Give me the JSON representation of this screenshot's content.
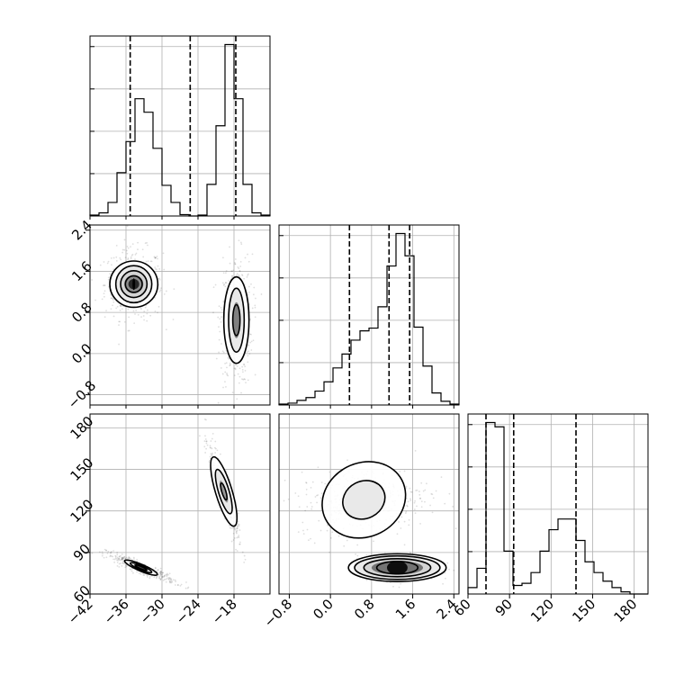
{
  "chart_data": {
    "type": "corner",
    "title": "",
    "parameters": [
      {
        "index": 0,
        "label": "",
        "range": [
          -42,
          -12
        ],
        "ticks": [
          -42,
          -36,
          -30,
          -24,
          -18
        ],
        "tick_labels": [
          "−42",
          "−36",
          "−30",
          "−24",
          "−18"
        ]
      },
      {
        "index": 1,
        "label": "",
        "range": [
          -1.0,
          2.5
        ],
        "ticks": [
          -0.8,
          0.0,
          0.8,
          1.6,
          2.4
        ],
        "tick_labels": [
          "−0.8",
          "0.0",
          "0.8",
          "1.6",
          "2.4"
        ]
      },
      {
        "index": 2,
        "label": "",
        "range": [
          60,
          190
        ],
        "ticks": [
          60,
          90,
          120,
          150,
          180
        ],
        "tick_labels": [
          "60",
          "90",
          "120",
          "150",
          "180"
        ]
      }
    ],
    "histograms": [
      {
        "param": 0,
        "bins": [
          -42,
          -40.5,
          -39,
          -37.5,
          -36,
          -34.5,
          -33,
          -31.5,
          -30,
          -28.5,
          -27,
          -25.5,
          -24,
          -22.5,
          -21,
          -19.5,
          -18,
          -16.5,
          -15,
          -13.5,
          -12
        ],
        "counts": [
          0.02,
          0.07,
          0.3,
          0.96,
          1.65,
          2.6,
          2.3,
          1.5,
          0.68,
          0.3,
          0.03,
          0.0,
          0.02,
          0.7,
          2.0,
          3.8,
          2.6,
          0.7,
          0.07,
          0.02
        ],
        "quantiles": [
          -35.3,
          -25.3,
          -17.7
        ]
      },
      {
        "param": 1,
        "bins": [
          -1.0,
          -0.825,
          -0.65,
          -0.475,
          -0.3,
          -0.125,
          0.05,
          0.225,
          0.4,
          0.575,
          0.75,
          0.925,
          1.1,
          1.275,
          1.45,
          1.625,
          1.8,
          1.975,
          2.15,
          2.325,
          2.5
        ],
        "counts": [
          0.01,
          0.02,
          0.05,
          0.08,
          0.15,
          0.25,
          0.4,
          0.55,
          0.7,
          0.8,
          0.83,
          1.06,
          1.5,
          1.85,
          1.61,
          0.84,
          0.42,
          0.13,
          0.04,
          0.01
        ],
        "quantiles": [
          0.37,
          1.14,
          1.54
        ]
      },
      {
        "param": 2,
        "bins": [
          60,
          66.5,
          73,
          79.5,
          86,
          92.5,
          99,
          105.5,
          112,
          118.5,
          125,
          131.5,
          138,
          144.5,
          151,
          157.5,
          164,
          170.5,
          177,
          183.5,
          190
        ],
        "counts": [
          0.03,
          0.12,
          0.8,
          0.78,
          0.2,
          0.04,
          0.05,
          0.1,
          0.2,
          0.3,
          0.35,
          0.35,
          0.25,
          0.15,
          0.1,
          0.06,
          0.03,
          0.01,
          0.0,
          0.0
        ],
        "quantiles": [
          73,
          93,
          138
        ]
      }
    ],
    "joint": [
      {
        "x_param": 0,
        "y_param": 1,
        "clusters": [
          {
            "center": [
              -34.7,
              1.35
            ],
            "spread": [
              2.1,
              0.3
            ],
            "rho": 0,
            "levels": [
              [
                0.1,
                0.1
              ],
              [
                1.4,
                0.16
              ],
              [
                2.2,
                0.26
              ],
              [
                3.0,
                0.36
              ],
              [
                4.0,
                0.45
              ]
            ],
            "core": [
              [
                1.6,
                0.18,
                0.45
              ],
              [
                0.9,
                0.1,
                0.85
              ]
            ]
          },
          {
            "center": [
              -17.6,
              0.65
            ],
            "spread": [
              1.15,
              0.55
            ],
            "rho": 0,
            "levels": [
              [
                0.6,
                0.3
              ],
              [
                1.3,
                0.62
              ],
              [
                2.1,
                0.84
              ]
            ],
            "core": [
              [
                0.65,
                0.35,
                0.5
              ]
            ]
          }
        ]
      },
      {
        "x_param": 0,
        "y_param": 2,
        "clusters": [
          {
            "center": [
              -33.5,
              79
            ],
            "spread": [
              2.5,
              4.6
            ],
            "rho": -0.93,
            "levels": [
              [
                1.0,
                1.5
              ],
              [
                1.9,
                2.3
              ],
              [
                2.9,
                3.4
              ]
            ],
            "core": [
              [
                1.2,
                2.0,
                0.75
              ]
            ]
          },
          {
            "center": [
              -19.7,
              134
            ],
            "spread": [
              1.05,
              15
            ],
            "rho": -0.9,
            "levels": [
              [
                0.6,
                6
              ],
              [
                1.4,
                16
              ],
              [
                2.2,
                25
              ]
            ],
            "core": [
              [
                0.7,
                8,
                0.4
              ]
            ]
          }
        ]
      },
      {
        "x_param": 1,
        "y_param": 2,
        "clusters": [
          {
            "center": [
              0.65,
              128
            ],
            "spread": [
              0.55,
              10.5
            ],
            "rho": 0.15,
            "levels": [
              [
                0.5,
                9
              ],
              [
                1.0,
                17
              ]
            ],
            "core": []
          },
          {
            "center": [
              1.3,
              79
            ],
            "spread": [
              0.34,
              4.0
            ],
            "rho": 0,
            "levels": [
              [
                0.4,
                4.5
              ],
              [
                0.65,
                6.5
              ],
              [
                0.83,
                8.5
              ],
              [
                0.95,
                10
              ]
            ],
            "core": [
              [
                0.5,
                5,
                0.55
              ],
              [
                0.2,
                5,
                0.95
              ]
            ]
          }
        ]
      }
    ],
    "quantile_line_style": "dashed",
    "grid": true
  }
}
